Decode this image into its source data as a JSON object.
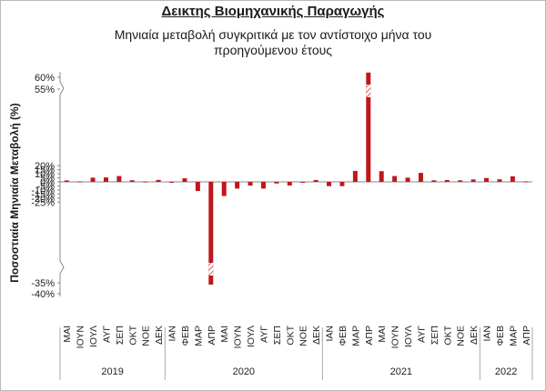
{
  "chart_data": {
    "type": "bar",
    "title": "Δεικτης Βιομηχανικής Παραγωγής",
    "subtitle": "Μηνιαία μεταβολή συγκριτικά με τον αντίστοιχο μήνα του προηγούμενου έτους",
    "ylabel": "Ποσοστιαία Μηνιαία Μεταβολή (%)",
    "bar_color": "#c0171c",
    "ytick_labels": [
      "60%",
      "55%",
      "20%",
      "15%",
      "10%",
      "5%",
      "0%",
      "-5%",
      "-10%",
      "-15%",
      "-20%",
      "-25%",
      "-35%",
      "-40%"
    ],
    "axis_breaks": [
      "20% to 55%",
      "-25% to -35%"
    ],
    "grid": false,
    "categories": [
      "ΜΑΙ",
      "ΙΟΥΝ",
      "ΙΟΥΛ",
      "ΑΥΓ",
      "ΣΕΠ",
      "ΟΚΤ",
      "ΝΟΕ",
      "ΔΕΚ",
      "ΙΑΝ",
      "ΦΕΒ",
      "ΜΑΡ",
      "ΑΠΡ",
      "ΜΑΙ",
      "ΙΟΥΝ",
      "ΙΟΥΛ",
      "ΑΥΓ",
      "ΣΕΠ",
      "ΟΚΤ",
      "ΝΟΕ",
      "ΔΕΚ",
      "ΙΑΝ",
      "ΦΕΒ",
      "ΜΑΡ",
      "ΑΠΡ",
      "ΜΑΙ",
      "ΙΟΥΝ",
      "ΙΟΥΛ",
      "ΑΥΓ",
      "ΣΕΠ",
      "ΟΚΤ",
      "ΝΟΕ",
      "ΔΕΚ",
      "ΙΑΝ",
      "ΦΕΒ",
      "ΜΑΡ",
      "ΑΠΡ"
    ],
    "years": [
      {
        "label": "2019",
        "months": 8
      },
      {
        "label": "2020",
        "months": 12
      },
      {
        "label": "2021",
        "months": 12
      },
      {
        "label": "2022",
        "months": 4
      }
    ],
    "values": [
      1.8,
      0.5,
      5.2,
      5.5,
      7.2,
      2.0,
      0.5,
      2.4,
      -0.5,
      4.4,
      -11.3,
      -37.0,
      -17.5,
      -8.3,
      -4.7,
      -8.3,
      -2.0,
      -4.5,
      -0.9,
      2.3,
      -5.3,
      -5.3,
      13.5,
      62.0,
      13.2,
      7.2,
      5.2,
      11.1,
      1.9,
      2.3,
      1.9,
      3.0,
      4.8,
      3.2,
      6.8,
      0.6
    ]
  }
}
